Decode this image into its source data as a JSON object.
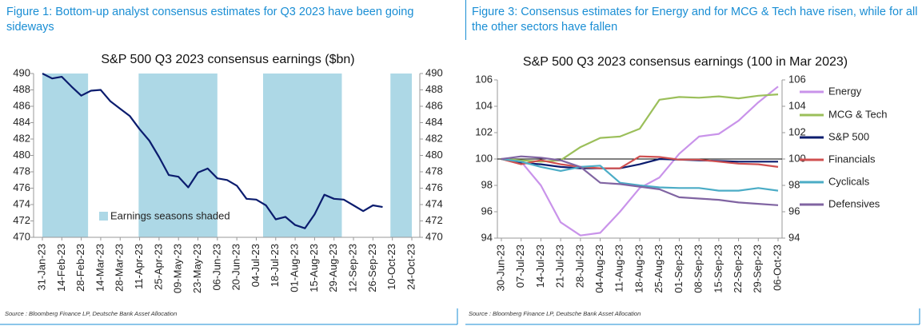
{
  "captions": [
    "Figure 1: Bottom-up analyst consensus estimates for Q3 2023 have been going sideways",
    "Figure 3: Consensus estimates for Energy and for MCG & Tech have risen, while for all the other sectors have fallen"
  ],
  "sources": [
    "Source : Bloomberg Finance LP, Deutsche Bank Asset Allocation",
    "Source : Bloomberg Finance LP, Deutsche Bank Asset Allocation"
  ],
  "chart_data": [
    {
      "type": "line",
      "title": "S&P 500 Q3 2023 consensus earnings ($bn)",
      "categories": [
        "31-Jan-23",
        null,
        "14-Feb-23",
        null,
        "28-Feb-23",
        null,
        "14-Mar-23",
        null,
        "28-Mar-23",
        null,
        "11-Apr-23",
        null,
        "25-Apr-23",
        null,
        "09-May-23",
        null,
        "23-May-23",
        null,
        "06-Jun-23",
        null,
        "20-Jun-23",
        null,
        "04-Jul-23",
        null,
        "18-Jul-23",
        null,
        "01-Aug-23",
        null,
        "15-Aug-23",
        null,
        "29-Aug-23",
        null,
        "12-Sep-23",
        null,
        "26-Sep-23",
        null,
        "10-Oct-23",
        null,
        "24-Oct-23"
      ],
      "series": [
        {
          "name": "S&P 500",
          "color": "#0b1c6e",
          "values": [
            490.0,
            489.4,
            489.6,
            488.4,
            487.3,
            487.9,
            488.0,
            486.6,
            485.7,
            484.8,
            483.2,
            481.8,
            479.8,
            477.6,
            477.4,
            476.1,
            477.9,
            478.4,
            477.2,
            477.0,
            476.3,
            474.7,
            474.6,
            473.9,
            472.2,
            472.5,
            471.5,
            471.1,
            472.8,
            475.2,
            474.7,
            474.6,
            473.9,
            473.2,
            473.9,
            473.7,
            null,
            null,
            null
          ]
        }
      ],
      "shaded": [
        [
          0,
          4.7
        ],
        [
          9.9,
          18
        ],
        [
          22.7,
          30.8
        ],
        [
          35.8,
          38
        ]
      ],
      "shade_color": "#add8e6",
      "shade_label": "Earnings seasons shaded",
      "ylim": [
        470,
        490
      ],
      "yticks": [
        470,
        472,
        474,
        476,
        478,
        480,
        482,
        484,
        486,
        488,
        490
      ],
      "y2lim": [
        470,
        490
      ],
      "y2ticks": [
        470,
        472,
        474,
        476,
        478,
        480,
        482,
        484,
        486,
        488,
        490
      ]
    },
    {
      "type": "line",
      "title": "S&P 500 Q3 2023 consensus earnings (100 in Mar 2023)",
      "categories": [
        "30-Jun-23",
        "07-Jul-23",
        "14-Jul-23",
        "21-Jul-23",
        "28-Jul-23",
        "04-Aug-23",
        "11-Aug-23",
        "18-Aug-23",
        "25-Aug-23",
        "01-Sep-23",
        "08-Sep-23",
        "15-Sep-23",
        "22-Sep-23",
        "29-Sep-23",
        "06-Oct-23"
      ],
      "series": [
        {
          "name": "Energy",
          "color": "#c993ea",
          "values": [
            100,
            99.8,
            98,
            95.2,
            94.2,
            94.4,
            96,
            97.8,
            98.6,
            100.4,
            101.7,
            101.9,
            102.9,
            104.3,
            105.5
          ]
        },
        {
          "name": "MCG & Tech",
          "color": "#9bbf5a",
          "values": [
            100,
            99.9,
            99.8,
            99.9,
            100.9,
            101.6,
            101.7,
            102.3,
            104.5,
            104.7,
            104.65,
            104.75,
            104.6,
            104.8,
            104.9
          ]
        },
        {
          "name": "S&P 500",
          "color": "#0b1c6e",
          "values": [
            100,
            99.7,
            99.6,
            99.4,
            99.3,
            99.3,
            99.3,
            99.6,
            100.0,
            99.95,
            99.9,
            99.85,
            99.8,
            99.8,
            99.8
          ]
        },
        {
          "name": "Financials",
          "color": "#d05050",
          "values": [
            100,
            99.6,
            99.9,
            99.6,
            99.4,
            99.3,
            99.3,
            100.2,
            100.15,
            99.95,
            99.95,
            99.8,
            99.65,
            99.6,
            99.4
          ]
        },
        {
          "name": "Cyclicals",
          "color": "#4bacc6",
          "values": [
            100,
            99.8,
            99.4,
            99.1,
            99.4,
            99.5,
            98.2,
            98.0,
            97.85,
            97.8,
            97.8,
            97.6,
            97.6,
            97.8,
            97.6
          ]
        },
        {
          "name": "Defensives",
          "color": "#8064a2",
          "values": [
            100,
            100.2,
            100.1,
            99.9,
            99.4,
            98.2,
            98.1,
            97.9,
            97.7,
            97.1,
            97.0,
            96.9,
            96.7,
            96.6,
            96.5
          ]
        }
      ],
      "reference_line": 100,
      "ylim": [
        94,
        106
      ],
      "yticks": [
        94,
        96,
        98,
        100,
        102,
        104,
        106
      ],
      "y2lim": [
        94,
        106
      ],
      "y2ticks": [
        94,
        96,
        98,
        100,
        102,
        104,
        106
      ]
    }
  ]
}
